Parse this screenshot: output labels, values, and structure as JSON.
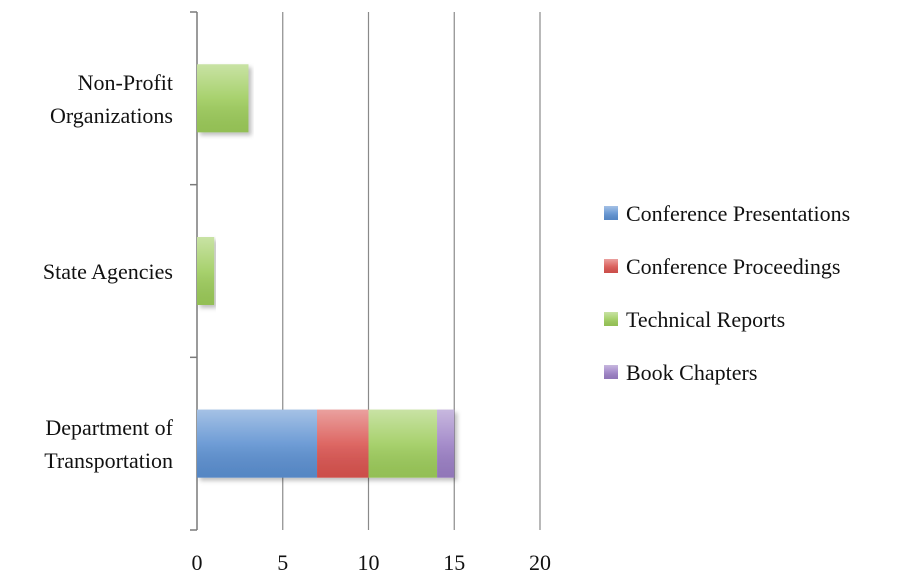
{
  "chart_data": {
    "type": "bar",
    "orientation": "horizontal",
    "stacked": true,
    "categories": [
      "Department of Transportation",
      "State Agencies",
      "Non-Profit Organizations"
    ],
    "category_lines": [
      [
        "Department of",
        "Transportation"
      ],
      [
        "State Agencies"
      ],
      [
        "Non-Profit",
        "Organizations"
      ]
    ],
    "series": [
      {
        "name": "Conference Presentations",
        "color": "#5b8fd0",
        "values": [
          7,
          0,
          0
        ]
      },
      {
        "name": "Conference Proceedings",
        "color": "#d9534f",
        "values": [
          3,
          0,
          0
        ]
      },
      {
        "name": "Technical Reports",
        "color": "#9ccb5a",
        "values": [
          4,
          1,
          3
        ]
      },
      {
        "name": "Book Chapters",
        "color": "#9a7ec4",
        "values": [
          1,
          0,
          0
        ]
      }
    ],
    "xlim": [
      0,
      20
    ],
    "xticks": [
      0,
      5,
      10,
      15,
      20
    ],
    "grid": "vertical",
    "legend_position": "right",
    "title": "",
    "xlabel": "",
    "ylabel": ""
  }
}
